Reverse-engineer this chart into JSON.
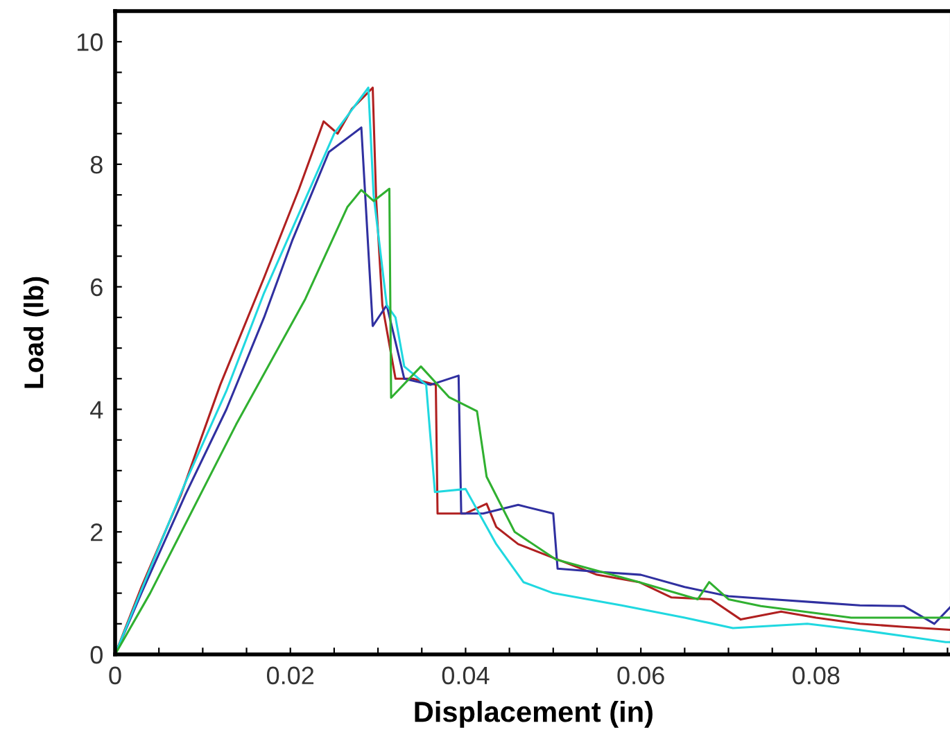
{
  "chart_data": {
    "type": "line",
    "xlabel": "Displacement (in)",
    "ylabel": "Load (lb)",
    "xlim": [
      0,
      0.0955
    ],
    "ylim": [
      0,
      10.5
    ],
    "xticks": [
      0,
      {
        "value": 0.005,
        "label": null
      },
      {
        "value": 0.01,
        "label": null
      },
      {
        "value": 0.015,
        "label": null
      },
      0.02,
      {
        "value": 0.025,
        "label": null
      },
      {
        "value": 0.03,
        "label": null
      },
      {
        "value": 0.035,
        "label": null
      },
      0.04,
      {
        "value": 0.045,
        "label": null
      },
      {
        "value": 0.05,
        "label": null
      },
      {
        "value": 0.055,
        "label": null
      },
      0.06,
      {
        "value": 0.065,
        "label": null
      },
      {
        "value": 0.07,
        "label": null
      },
      {
        "value": 0.075,
        "label": null
      },
      0.08,
      {
        "value": 0.085,
        "label": null
      },
      {
        "value": 0.09,
        "label": null
      },
      {
        "value": 0.095,
        "label": null
      }
    ],
    "yticks": [
      0,
      {
        "value": 0.5,
        "label": null
      },
      {
        "value": 1,
        "label": null
      },
      {
        "value": 1.5,
        "label": null
      },
      2,
      {
        "value": 2.5,
        "label": null
      },
      {
        "value": 3,
        "label": null
      },
      {
        "value": 3.5,
        "label": null
      },
      4,
      {
        "value": 4.5,
        "label": null
      },
      {
        "value": 5,
        "label": null
      },
      {
        "value": 5.5,
        "label": null
      },
      6,
      {
        "value": 6.5,
        "label": null
      },
      {
        "value": 7,
        "label": null
      },
      {
        "value": 7.5,
        "label": null
      },
      8,
      {
        "value": 8.5,
        "label": null
      },
      {
        "value": 9,
        "label": null
      },
      {
        "value": 9.5,
        "label": null
      },
      10
    ],
    "grid": false,
    "legend": false,
    "marker": "none",
    "line_style": "solid",
    "series": [
      {
        "color": "#b02020",
        "x": [
          0,
          0.003,
          0.0075,
          0.012,
          0.017,
          0.021,
          0.0238,
          0.0254,
          0.027,
          0.0294,
          0.0298,
          0.0305,
          0.032,
          0.034,
          0.0366,
          0.0368,
          0.04,
          0.0424,
          0.0435,
          0.046,
          0.0503,
          0.055,
          0.0598,
          0.0635,
          0.068,
          0.0714,
          0.076,
          0.08,
          0.085,
          0.09,
          0.0955
        ],
        "values": [
          0,
          1.1,
          2.6,
          4.4,
          6.15,
          7.6,
          8.7,
          8.5,
          8.9,
          9.25,
          7.4,
          5.7,
          4.5,
          4.5,
          4.4,
          2.3,
          2.3,
          2.46,
          2.08,
          1.8,
          1.56,
          1.3,
          1.18,
          0.93,
          0.9,
          0.57,
          0.7,
          0.6,
          0.5,
          0.45,
          0.4
        ]
      },
      {
        "color": "#3030a0",
        "x": [
          0,
          0.003,
          0.008,
          0.0127,
          0.017,
          0.0202,
          0.0244,
          0.0281,
          0.0294,
          0.031,
          0.033,
          0.036,
          0.0392,
          0.0395,
          0.042,
          0.046,
          0.05,
          0.0505,
          0.055,
          0.06,
          0.065,
          0.07,
          0.075,
          0.08,
          0.085,
          0.09,
          0.0935,
          0.0955
        ],
        "values": [
          0,
          1.0,
          2.6,
          4.0,
          5.5,
          6.75,
          8.2,
          8.6,
          5.36,
          5.7,
          4.5,
          4.4,
          4.55,
          2.3,
          2.3,
          2.44,
          2.3,
          1.4,
          1.35,
          1.3,
          1.1,
          0.95,
          0.9,
          0.85,
          0.8,
          0.79,
          0.5,
          0.8
        ]
      },
      {
        "color": "#20d8e0",
        "x": [
          0,
          0.003,
          0.008,
          0.0127,
          0.017,
          0.021,
          0.025,
          0.0289,
          0.0295,
          0.031,
          0.032,
          0.033,
          0.0355,
          0.0365,
          0.04,
          0.0435,
          0.0466,
          0.05,
          0.0578,
          0.065,
          0.0705,
          0.079,
          0.085,
          0.09,
          0.0948,
          0.0955
        ],
        "values": [
          0,
          1.05,
          2.8,
          4.3,
          5.9,
          7.2,
          8.5,
          9.25,
          7.5,
          5.7,
          5.5,
          4.7,
          4.4,
          2.65,
          2.7,
          1.8,
          1.18,
          1.0,
          0.8,
          0.6,
          0.43,
          0.5,
          0.4,
          0.3,
          0.2,
          0.2
        ]
      },
      {
        "color": "#30b030",
        "x": [
          0,
          0.004,
          0.0138,
          0.0217,
          0.0265,
          0.0281,
          0.0295,
          0.0313,
          0.0315,
          0.0349,
          0.0381,
          0.0413,
          0.0424,
          0.0456,
          0.0503,
          0.0598,
          0.0665,
          0.0678,
          0.07,
          0.0737,
          0.084,
          0.0955
        ],
        "values": [
          0,
          1.0,
          3.75,
          5.8,
          7.3,
          7.58,
          7.4,
          7.6,
          4.19,
          4.7,
          4.2,
          3.97,
          2.9,
          2.0,
          1.55,
          1.18,
          0.9,
          1.18,
          0.9,
          0.79,
          0.6,
          0.6
        ]
      }
    ]
  }
}
